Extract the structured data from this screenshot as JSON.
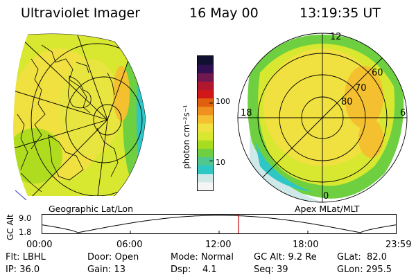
{
  "header": {
    "title": "Ultraviolet Imager",
    "date": "16 May 00",
    "time": "13:19:35 UT"
  },
  "colorbar": {
    "unit_label": "photon cm⁻²s⁻¹",
    "tick_100": "100",
    "tick_10": "10",
    "colors": [
      "#f5f5f5",
      "#cfe9e9",
      "#2fc6c6",
      "#4fc890",
      "#6ed040",
      "#a8dc20",
      "#d8e830",
      "#f0e040",
      "#f4c030",
      "#f09020",
      "#e06010",
      "#d01818",
      "#b01830",
      "#701850",
      "#301050",
      "#101030"
    ]
  },
  "left_map": {
    "caption": "Geographic Lat/Lon"
  },
  "right_map": {
    "caption": "Apex MLat/MLT",
    "mlt_12": "12",
    "mlt_18": "18",
    "mlt_6": "6",
    "mlt_0": "0",
    "lat_60": "60",
    "lat_70": "70",
    "lat_80": "80"
  },
  "altitude_plot": {
    "ylabel": "GC Alt",
    "ytick_top": "9.0",
    "ytick_bottom": "1.8",
    "xticks": [
      "00:00",
      "06:00",
      "12:00",
      "18:00",
      "23:59"
    ],
    "current_time_fraction": 0.555
  },
  "status": {
    "filter_label": "Flt:",
    "filter_value": "LBHL",
    "ip_label": "IP:",
    "ip_value": "36.0",
    "door_label": "Door:",
    "door_value": "Open",
    "gain_label": "Gain:",
    "gain_value": "13",
    "mode_label": "Mode:",
    "mode_value": "Normal",
    "dsp_label": "Dsp:",
    "dsp_value": "4.1",
    "gcalt_label": "GC Alt:",
    "gcalt_value": "9.2 Re",
    "seq_label": "Seq:",
    "seq_value": "39",
    "glat_label": "GLat:",
    "glat_value": "82.0",
    "glon_label": "GLon:",
    "glon_value": "295.5"
  }
}
